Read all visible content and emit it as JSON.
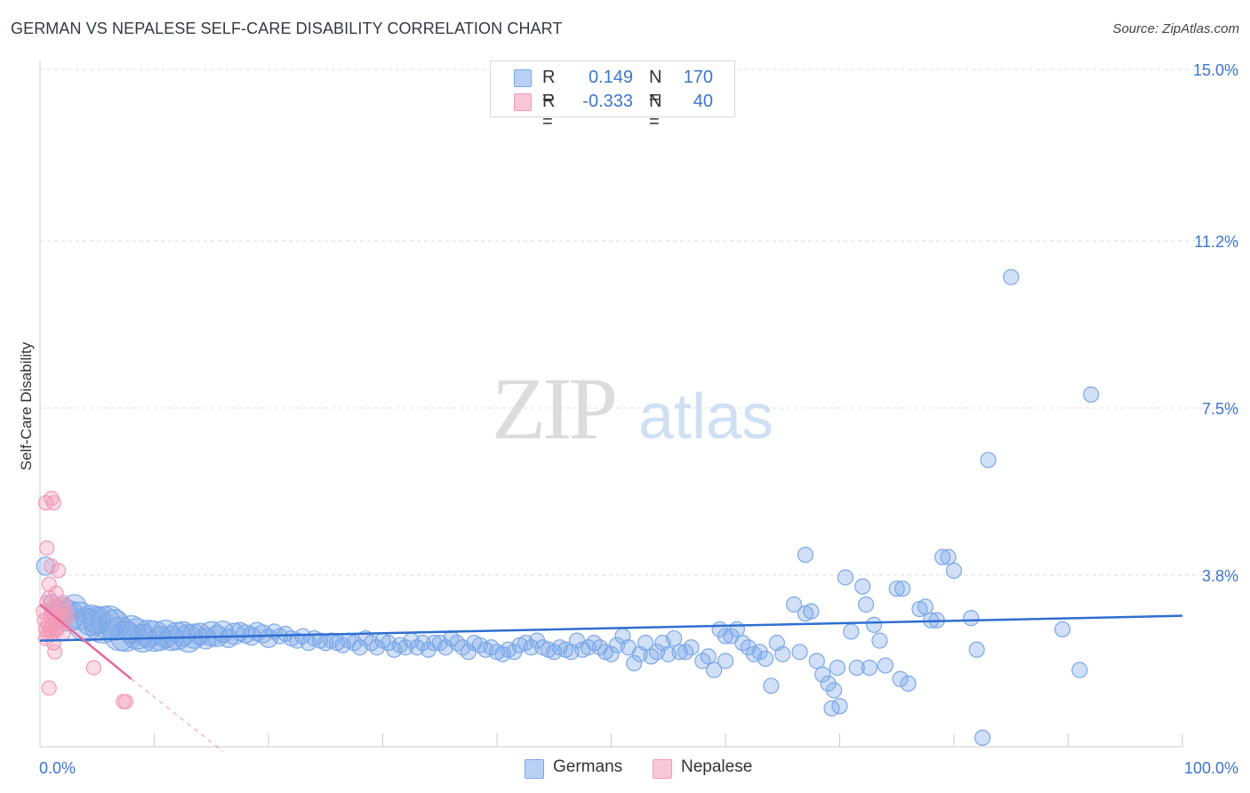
{
  "header": {
    "title": "GERMAN VS NEPALESE SELF-CARE DISABILITY CORRELATION CHART",
    "source": "Source: ZipAtlas.com"
  },
  "watermark": {
    "zip": "ZIP",
    "atlas": "atlas"
  },
  "legend": {
    "germans": {
      "r_label": "R =",
      "r_value": "0.149",
      "n_label": "N =",
      "n_value": "170"
    },
    "nepalese": {
      "r_label": "R =",
      "r_value": "-0.333",
      "n_label": "N =",
      "n_value": "40"
    }
  },
  "bottom_legend": {
    "germans": "Germans",
    "nepalese": "Nepalese"
  },
  "colors": {
    "germans": "#7ba7e8",
    "germans_line": "#2f6fd0",
    "nepalese": "#f29ab6",
    "nepalese_line": "#e8679a",
    "tick_label": "#3b75d1"
  },
  "chart_data": {
    "type": "scatter",
    "title": "GERMAN VS NEPALESE SELF-CARE DISABILITY CORRELATION CHART",
    "xlabel": "",
    "ylabel": "Self-Care Disability",
    "xlim": [
      0,
      100
    ],
    "ylim": [
      0,
      15.5
    ],
    "x_tick_labels": [
      "0.0%",
      "100.0%"
    ],
    "y_ticks": [
      3.8,
      7.5,
      11.2,
      15.0
    ],
    "y_tick_labels": [
      "3.8%",
      "7.5%",
      "11.2%",
      "15.0%"
    ],
    "grid": "horizontal dashed",
    "legend_position": "top-center",
    "series": [
      {
        "name": "Germans",
        "r": 0.149,
        "n": 170,
        "trend": {
          "x": [
            0,
            100
          ],
          "y": [
            2.35,
            2.9
          ]
        },
        "points": [
          [
            0.5,
            4.0,
            12
          ],
          [
            1.0,
            3.2,
            10
          ],
          [
            1.5,
            3.0,
            14
          ],
          [
            2,
            3.0,
            18
          ],
          [
            2.5,
            2.9,
            20
          ],
          [
            3,
            3.1,
            16
          ],
          [
            3.5,
            2.9,
            18
          ],
          [
            4,
            2.7,
            22
          ],
          [
            4.5,
            2.8,
            20
          ],
          [
            5,
            2.8,
            18
          ],
          [
            5.5,
            2.7,
            24
          ],
          [
            6,
            2.75,
            22
          ],
          [
            6.5,
            2.7,
            20
          ],
          [
            7,
            2.5,
            22
          ],
          [
            7.5,
            2.45,
            20
          ],
          [
            8,
            2.6,
            18
          ],
          [
            8.5,
            2.5,
            20
          ],
          [
            9,
            2.4,
            18
          ],
          [
            9.5,
            2.5,
            18
          ],
          [
            10,
            2.45,
            20
          ],
          [
            10.5,
            2.4,
            16
          ],
          [
            11,
            2.5,
            18
          ],
          [
            11.5,
            2.4,
            16
          ],
          [
            12,
            2.45,
            18
          ],
          [
            12.5,
            2.5,
            16
          ],
          [
            13,
            2.4,
            18
          ],
          [
            13.5,
            2.45,
            16
          ],
          [
            14,
            2.5,
            14
          ],
          [
            14.5,
            2.4,
            14
          ],
          [
            15,
            2.5,
            16
          ],
          [
            15.5,
            2.45,
            14
          ],
          [
            16,
            2.55,
            14
          ],
          [
            16.5,
            2.4,
            12
          ],
          [
            17,
            2.5,
            14
          ],
          [
            17.5,
            2.55,
            12
          ],
          [
            18,
            2.5,
            12
          ],
          [
            18.5,
            2.45,
            12
          ],
          [
            19,
            2.55,
            12
          ],
          [
            19.5,
            2.5,
            12
          ],
          [
            20,
            2.4,
            12
          ],
          [
            20.5,
            2.55,
            10
          ],
          [
            21,
            2.45,
            10
          ],
          [
            21.5,
            2.5,
            10
          ],
          [
            22,
            2.4,
            10
          ],
          [
            22.5,
            2.35,
            10
          ],
          [
            23,
            2.45,
            10
          ],
          [
            23.5,
            2.3,
            10
          ],
          [
            24,
            2.4,
            10
          ],
          [
            24.5,
            2.35,
            10
          ],
          [
            25,
            2.3,
            10
          ],
          [
            25.5,
            2.35,
            10
          ],
          [
            26,
            2.3,
            10
          ],
          [
            26.5,
            2.25,
            10
          ],
          [
            27,
            2.35,
            10
          ],
          [
            27.5,
            2.3,
            10
          ],
          [
            28,
            2.2,
            10
          ],
          [
            28.5,
            2.4,
            10
          ],
          [
            29,
            2.3,
            10
          ],
          [
            29.5,
            2.2,
            10
          ],
          [
            30,
            2.35,
            10
          ],
          [
            30.5,
            2.3,
            10
          ],
          [
            31,
            2.15,
            10
          ],
          [
            31.5,
            2.25,
            10
          ],
          [
            32,
            2.2,
            10
          ],
          [
            32.5,
            2.35,
            10
          ],
          [
            33,
            2.2,
            10
          ],
          [
            33.5,
            2.3,
            10
          ],
          [
            34,
            2.15,
            10
          ],
          [
            34.5,
            2.3,
            10
          ],
          [
            35,
            2.3,
            10
          ],
          [
            35.5,
            2.2,
            10
          ],
          [
            36,
            2.4,
            10
          ],
          [
            36.5,
            2.3,
            10
          ],
          [
            37,
            2.2,
            10
          ],
          [
            37.5,
            2.1,
            10
          ],
          [
            38,
            2.3,
            10
          ],
          [
            38.5,
            2.25,
            10
          ],
          [
            39,
            2.15,
            10
          ],
          [
            39.5,
            2.2,
            10
          ],
          [
            40,
            2.1,
            10
          ],
          [
            40.5,
            2.05,
            10
          ],
          [
            41,
            2.15,
            10
          ],
          [
            41.5,
            2.1,
            10
          ],
          [
            42,
            2.25,
            10
          ],
          [
            42.5,
            2.3,
            10
          ],
          [
            43,
            2.2,
            10
          ],
          [
            43.5,
            2.35,
            10
          ],
          [
            44,
            2.2,
            10
          ],
          [
            44.5,
            2.15,
            10
          ],
          [
            45,
            2.1,
            10
          ],
          [
            45.5,
            2.2,
            10
          ],
          [
            46,
            2.15,
            10
          ],
          [
            46.5,
            2.1,
            10
          ],
          [
            47,
            2.35,
            10
          ],
          [
            47.5,
            2.15,
            10
          ],
          [
            48,
            2.2,
            10
          ],
          [
            48.5,
            2.3,
            10
          ],
          [
            49,
            2.2,
            10
          ],
          [
            49.5,
            2.1,
            10
          ],
          [
            50,
            2.05,
            10
          ],
          [
            50.5,
            2.25,
            10
          ],
          [
            51,
            2.45,
            10
          ],
          [
            51.5,
            2.2,
            10
          ],
          [
            52,
            1.85,
            10
          ],
          [
            52.5,
            2.05,
            10
          ],
          [
            53,
            2.3,
            10
          ],
          [
            53.5,
            2.0,
            10
          ],
          [
            54,
            2.1,
            10
          ],
          [
            54.5,
            2.3,
            10
          ],
          [
            55,
            2.05,
            10
          ],
          [
            55.5,
            2.4,
            10
          ],
          [
            56,
            2.1,
            10
          ],
          [
            56.5,
            2.1,
            10
          ],
          [
            57,
            2.2,
            10
          ],
          [
            58,
            1.9,
            10
          ],
          [
            58.5,
            2.0,
            10
          ],
          [
            59,
            1.7,
            10
          ],
          [
            59.5,
            2.6,
            10
          ],
          [
            60,
            2.45,
            10
          ],
          [
            60.5,
            2.45,
            10
          ],
          [
            61,
            2.6,
            10
          ],
          [
            61.5,
            2.3,
            10
          ],
          [
            62,
            2.2,
            10
          ],
          [
            62.5,
            2.05,
            10
          ],
          [
            63,
            2.1,
            10
          ],
          [
            63.5,
            1.95,
            10
          ],
          [
            64,
            1.35,
            10
          ],
          [
            64.5,
            2.3,
            10
          ],
          [
            65,
            2.05,
            10
          ],
          [
            66,
            3.15,
            10
          ],
          [
            66.5,
            2.1,
            10
          ],
          [
            67,
            2.95,
            10
          ],
          [
            67.5,
            3.0,
            10
          ],
          [
            68,
            1.9,
            10
          ],
          [
            68.5,
            1.6,
            10
          ],
          [
            69,
            1.4,
            10
          ],
          [
            69.3,
            0.85,
            10
          ],
          [
            69.5,
            1.25,
            10
          ],
          [
            69.8,
            1.75,
            10
          ],
          [
            70,
            0.9,
            10
          ],
          [
            70.5,
            3.75,
            10
          ],
          [
            71,
            2.55,
            10
          ],
          [
            71.5,
            1.75,
            10
          ],
          [
            72,
            3.55,
            10
          ],
          [
            72.3,
            3.15,
            10
          ],
          [
            72.6,
            1.75,
            10
          ],
          [
            73,
            2.7,
            10
          ],
          [
            73.5,
            2.35,
            10
          ],
          [
            74,
            1.8,
            10
          ],
          [
            75,
            3.5,
            10
          ],
          [
            75.3,
            1.5,
            10
          ],
          [
            75.5,
            3.5,
            10
          ],
          [
            76,
            1.4,
            10
          ],
          [
            77,
            3.05,
            10
          ],
          [
            77.5,
            3.1,
            10
          ],
          [
            78,
            2.8,
            10
          ],
          [
            78.5,
            2.8,
            10
          ],
          [
            79,
            4.2,
            10
          ],
          [
            79.5,
            4.2,
            10
          ],
          [
            80,
            3.9,
            10
          ],
          [
            81.5,
            2.85,
            10
          ],
          [
            82,
            2.15,
            10
          ],
          [
            82.5,
            0.2,
            10
          ],
          [
            83,
            6.35,
            10
          ],
          [
            85,
            10.4,
            10
          ],
          [
            89.5,
            2.6,
            10
          ],
          [
            91,
            1.7,
            10
          ],
          [
            92,
            7.8,
            10
          ],
          [
            67,
            4.25,
            10
          ],
          [
            60,
            1.9,
            10
          ]
        ]
      },
      {
        "name": "Nepalese",
        "r": -0.333,
        "n": 40,
        "trend": {
          "x": [
            0,
            8
          ],
          "y": [
            3.15,
            1.5
          ]
        },
        "trend_extension": {
          "x": [
            8,
            16
          ],
          "y": [
            1.5,
            -0.1
          ]
        },
        "points": [
          [
            0.3,
            3.0
          ],
          [
            0.4,
            2.8
          ],
          [
            0.5,
            2.6
          ],
          [
            0.5,
            2.4
          ],
          [
            0.6,
            3.2
          ],
          [
            0.7,
            2.7
          ],
          [
            0.7,
            2.5
          ],
          [
            0.8,
            3.6
          ],
          [
            0.8,
            3.3
          ],
          [
            0.9,
            2.9
          ],
          [
            0.9,
            2.6
          ],
          [
            1.0,
            3.0
          ],
          [
            1.0,
            2.5
          ],
          [
            1.1,
            2.7
          ],
          [
            1.2,
            3.1
          ],
          [
            1.2,
            2.3
          ],
          [
            1.3,
            2.8
          ],
          [
            1.3,
            2.6
          ],
          [
            1.4,
            3.4
          ],
          [
            1.5,
            2.9
          ],
          [
            1.5,
            2.6
          ],
          [
            1.6,
            3.9
          ],
          [
            1.7,
            2.7
          ],
          [
            1.8,
            2.9
          ],
          [
            1.9,
            3.0
          ],
          [
            2.0,
            2.5
          ],
          [
            2.0,
            3.2
          ],
          [
            2.1,
            3.1
          ],
          [
            2.2,
            2.8
          ],
          [
            2.4,
            2.9
          ],
          [
            0.5,
            5.4
          ],
          [
            1.0,
            5.5
          ],
          [
            1.2,
            5.4
          ],
          [
            0.6,
            4.4
          ],
          [
            1.0,
            4.0
          ],
          [
            0.8,
            1.3
          ],
          [
            1.3,
            2.1
          ],
          [
            4.7,
            1.75
          ],
          [
            7.5,
            1.0
          ],
          [
            7.3,
            1.0
          ]
        ]
      }
    ]
  }
}
